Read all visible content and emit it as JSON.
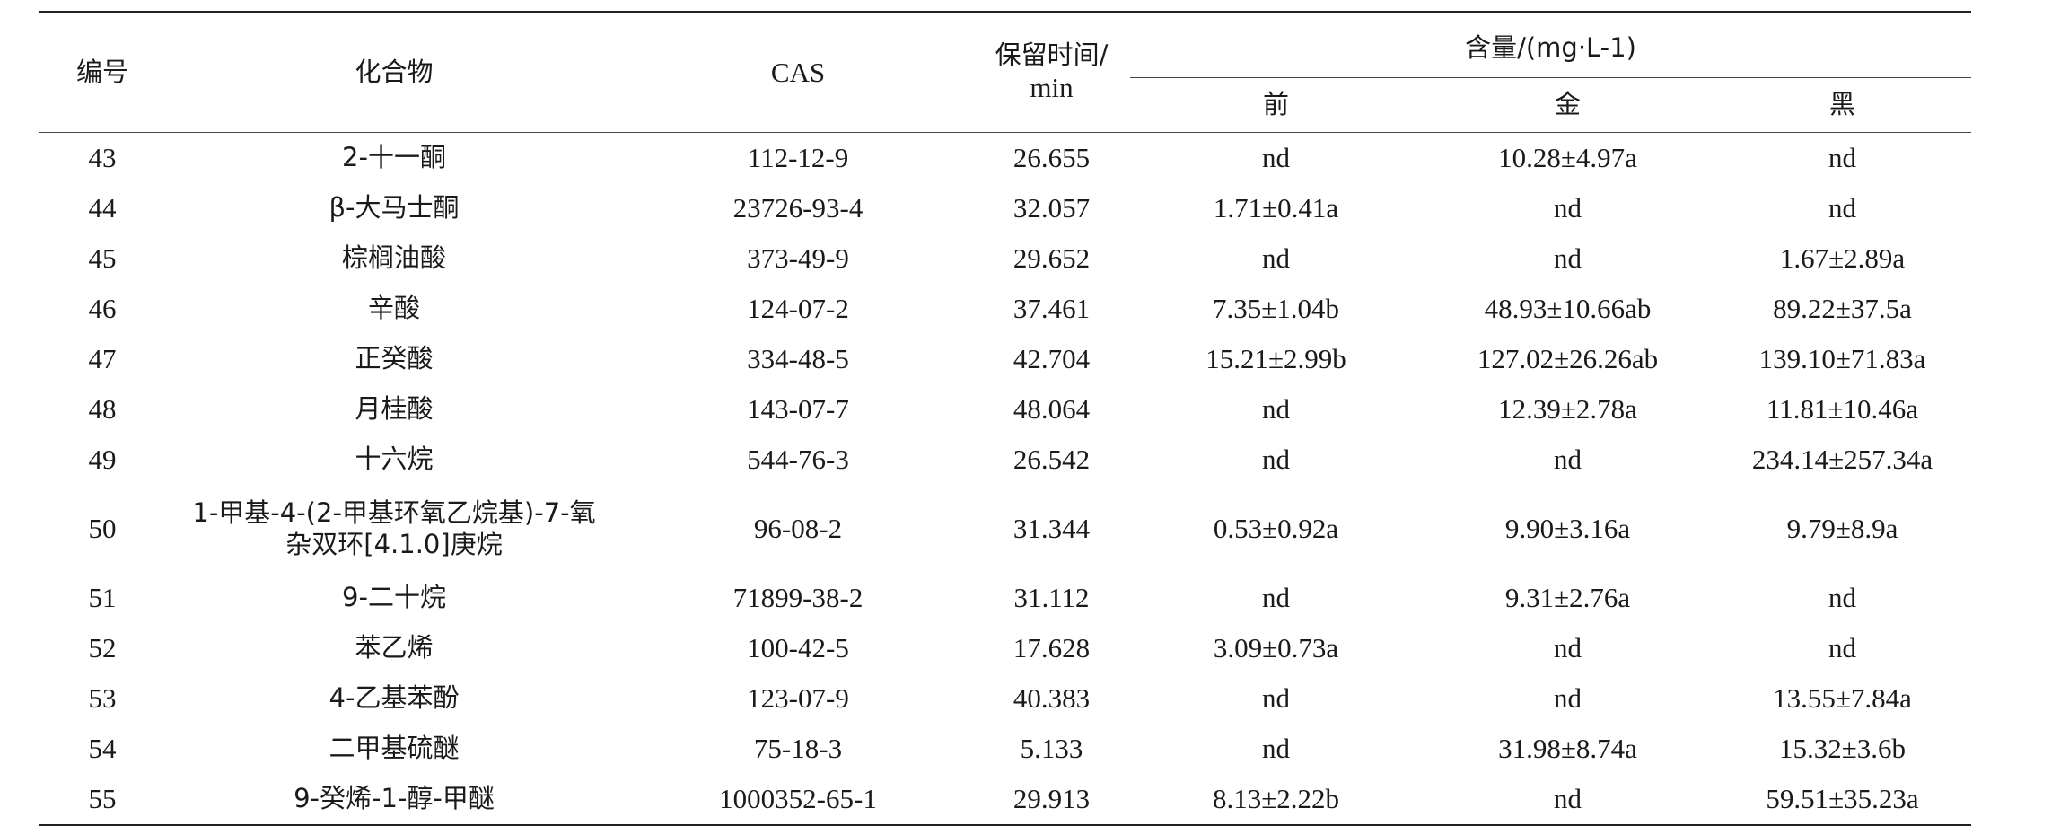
{
  "table": {
    "headers": {
      "no": "编号",
      "compound": "化合物",
      "cas": "CAS",
      "rt_line1": "保留时间/",
      "rt_line2": "min",
      "content": "含量/(mg·L-1)",
      "sub": [
        "前",
        "金",
        "黑"
      ]
    },
    "rows": [
      {
        "no": "43",
        "compound": "2-十一酮",
        "cas": "112-12-9",
        "rt": "26.655",
        "v1": "nd",
        "v2": "10.28±4.97a",
        "v3": "nd"
      },
      {
        "no": "44",
        "compound": "β-大马士酮",
        "cas": "23726-93-4",
        "rt": "32.057",
        "v1": "1.71±0.41a",
        "v2": "nd",
        "v3": "nd"
      },
      {
        "no": "45",
        "compound": "棕榈油酸",
        "cas": "373-49-9",
        "rt": "29.652",
        "v1": "nd",
        "v2": "nd",
        "v3": "1.67±2.89a"
      },
      {
        "no": "46",
        "compound": "辛酸",
        "cas": "124-07-2",
        "rt": "37.461",
        "v1": "7.35±1.04b",
        "v2": "48.93±10.66ab",
        "v3": "89.22±37.5a"
      },
      {
        "no": "47",
        "compound": "正癸酸",
        "cas": "334-48-5",
        "rt": "42.704",
        "v1": "15.21±2.99b",
        "v2": "127.02±26.26ab",
        "v3": "139.10±71.83a"
      },
      {
        "no": "48",
        "compound": "月桂酸",
        "cas": "143-07-7",
        "rt": "48.064",
        "v1": "nd",
        "v2": "12.39±2.78a",
        "v3": "11.81±10.46a"
      },
      {
        "no": "49",
        "compound": "十六烷",
        "cas": "544-76-3",
        "rt": "26.542",
        "v1": "nd",
        "v2": "nd",
        "v3": "234.14±257.34a"
      },
      {
        "no": "50",
        "compound": "1-甲基-4-(2-甲基环氧乙烷基)-7-氧杂双环[4.1.0]庚烷",
        "cas": "96-08-2",
        "rt": "31.344",
        "v1": "0.53±0.92a",
        "v2": "9.90±3.16a",
        "v3": "9.79±8.9a"
      },
      {
        "no": "51",
        "compound": "9-二十烷",
        "cas": "71899-38-2",
        "rt": "31.112",
        "v1": "nd",
        "v2": "9.31±2.76a",
        "v3": "nd"
      },
      {
        "no": "52",
        "compound": "苯乙烯",
        "cas": "100-42-5",
        "rt": "17.628",
        "v1": "3.09±0.73a",
        "v2": "nd",
        "v3": "nd"
      },
      {
        "no": "53",
        "compound": "4-乙基苯酚",
        "cas": "123-07-9",
        "rt": "40.383",
        "v1": "nd",
        "v2": "nd",
        "v3": "13.55±7.84a"
      },
      {
        "no": "54",
        "compound": "二甲基硫醚",
        "cas": "75-18-3",
        "rt": "5.133",
        "v1": "nd",
        "v2": "31.98±8.74a",
        "v3": "15.32±3.6b"
      },
      {
        "no": "55",
        "compound": "9-癸烯-1-醇-甲醚",
        "cas": "1000352-65-1",
        "rt": "29.913",
        "v1": "8.13±2.22b",
        "v2": "nd",
        "v3": "59.51±35.23a"
      }
    ]
  }
}
